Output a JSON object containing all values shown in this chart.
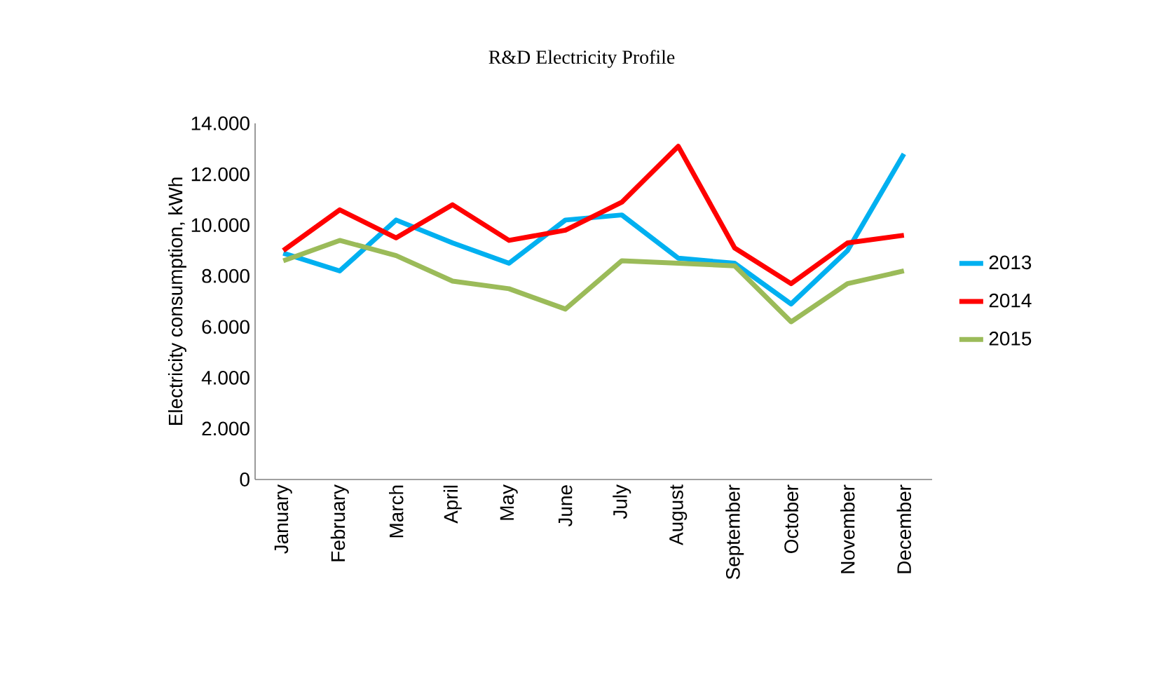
{
  "chart_data": {
    "type": "line",
    "title": "R&D Electricity Profile",
    "ylabel": "Electricity consumption, kWh",
    "categories": [
      "January",
      "February",
      "March",
      "April",
      "May",
      "June",
      "July",
      "August",
      "September",
      "October",
      "November",
      "December"
    ],
    "series": [
      {
        "name": "2013",
        "color": "#00b0f0",
        "values": [
          8900,
          8200,
          10200,
          9300,
          8500,
          10200,
          10400,
          8700,
          8500,
          6900,
          9000,
          12800
        ]
      },
      {
        "name": "2014",
        "color": "#ff0000",
        "values": [
          9000,
          10600,
          9500,
          10800,
          9400,
          9800,
          10900,
          13100,
          9100,
          7700,
          9300,
          9600
        ]
      },
      {
        "name": "2015",
        "color": "#9bbb59",
        "values": [
          8600,
          9400,
          8800,
          7800,
          7500,
          6700,
          8600,
          8500,
          8400,
          6200,
          7700,
          8200
        ]
      }
    ],
    "ylim": [
      0,
      14000
    ],
    "yticks": [
      0,
      {
        "value": 2000,
        "label": "2.000"
      },
      {
        "value": 4000,
        "label": "4.000"
      },
      {
        "value": 6000,
        "label": "6.000"
      },
      {
        "value": 8000,
        "label": "8.000"
      },
      {
        "value": 10000,
        "label": "10.000"
      },
      {
        "value": 12000,
        "label": "12.000"
      },
      {
        "value": 14000,
        "label": "14.000"
      }
    ],
    "grid": false,
    "legend": "right",
    "marker": "none",
    "line_style": "solid"
  }
}
